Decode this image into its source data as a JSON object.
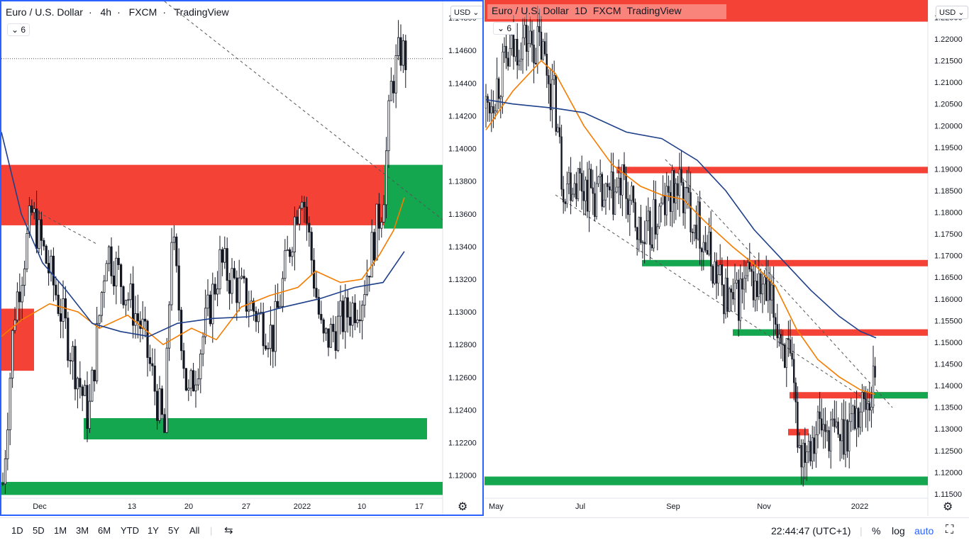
{
  "left": {
    "title": {
      "symbol": "Euro / U.S. Dollar",
      "sep": "·",
      "interval": "4h",
      "source": "FXCM",
      "platform": "TradingView"
    },
    "indicators_count": "6",
    "currency": "USD",
    "chart_data": {
      "type": "candlestick",
      "ylim": [
        1.1186,
        1.149
      ],
      "y_ticks": [
        "1.14800",
        "1.14600",
        "1.14400",
        "1.14200",
        "1.14000",
        "1.13800",
        "1.13600",
        "1.13400",
        "1.13200",
        "1.13000",
        "1.12800",
        "1.12600",
        "1.12400",
        "1.12200",
        "1.12000"
      ],
      "x_ticks": [
        "Dec",
        "13",
        "20",
        "27",
        "2022",
        "10",
        "17"
      ],
      "current_price": 1.1455,
      "zones": [
        {
          "color": "red",
          "y_top": 1.139,
          "y_bottom": 1.1353,
          "x_start": "start",
          "x_end": "break"
        },
        {
          "color": "green",
          "y_top": 1.139,
          "y_bottom": 1.1351,
          "x_start": "break",
          "x_end": "end"
        },
        {
          "color": "red",
          "y_top": 1.1302,
          "y_bottom": 1.1264,
          "x_start": "start",
          "x_end": "early"
        },
        {
          "color": "green",
          "y_top": 1.1235,
          "y_bottom": 1.1222,
          "x_start": "Dec+",
          "x_end": "late"
        },
        {
          "color": "green",
          "y_top": 1.1196,
          "y_bottom": 1.1188,
          "x_start": "start",
          "x_end": "end"
        }
      ],
      "series": [
        {
          "kind": "sma",
          "color": "#f57c00"
        },
        {
          "kind": "sma",
          "color": "#1e3f8a"
        }
      ]
    },
    "axis_labels": [
      "Dec",
      "13",
      "20",
      "27",
      "2022",
      "10",
      "17"
    ]
  },
  "right": {
    "title": {
      "symbol": "Euro / U.S. Dollar",
      "interval": "1D",
      "source": "FXCM",
      "platform": "TradingView"
    },
    "indicators_count": "6",
    "currency": "USD",
    "chart_data": {
      "type": "candlestick",
      "ylim": [
        1.114,
        1.229
      ],
      "y_ticks": [
        "1.22500",
        "1.22000",
        "1.21500",
        "1.21000",
        "1.20500",
        "1.20000",
        "1.19500",
        "1.19000",
        "1.18500",
        "1.18000",
        "1.17500",
        "1.17000",
        "1.16500",
        "1.16000",
        "1.15500",
        "1.15000",
        "1.14500",
        "1.14000",
        "1.13500",
        "1.13000",
        "1.12500",
        "1.12000",
        "1.11500"
      ],
      "x_ticks": [
        "May",
        "Jul",
        "Sep",
        "Nov",
        "2022"
      ],
      "zones": [
        {
          "color": "red",
          "y_top": 1.229,
          "y_bottom": 1.224
        },
        {
          "color": "red",
          "y_top": 1.1905,
          "y_bottom": 1.189
        },
        {
          "color": "red",
          "y_top": 1.169,
          "y_bottom": 1.1678
        },
        {
          "color": "green",
          "y_top": 1.169,
          "y_bottom": 1.1678
        },
        {
          "color": "green",
          "y_top": 1.153,
          "y_bottom": 1.1515
        },
        {
          "color": "red",
          "y_top": 1.153,
          "y_bottom": 1.1515
        },
        {
          "color": "red",
          "y_top": 1.1385,
          "y_bottom": 1.1375
        },
        {
          "color": "green",
          "y_top": 1.1385,
          "y_bottom": 1.1375
        },
        {
          "color": "red",
          "y_top": 1.13,
          "y_bottom": 1.1285
        },
        {
          "color": "green",
          "y_top": 1.119,
          "y_bottom": 1.117
        }
      ],
      "series": [
        {
          "kind": "sma",
          "color": "#f57c00"
        },
        {
          "kind": "sma",
          "color": "#1e3f8a"
        }
      ]
    }
  },
  "toolbar": {
    "ranges": [
      "1D",
      "5D",
      "1M",
      "3M",
      "6M",
      "YTD",
      "1Y",
      "5Y",
      "All"
    ],
    "time": "22:44:47 (UTC+1)",
    "percent": "%",
    "log": "log",
    "auto": "auto"
  },
  "colors": {
    "zone_red": "#f44336",
    "zone_green": "#14a750",
    "ma_orange": "#f57c00",
    "ma_blue": "#1e3f8a",
    "accent": "#2962ff"
  }
}
